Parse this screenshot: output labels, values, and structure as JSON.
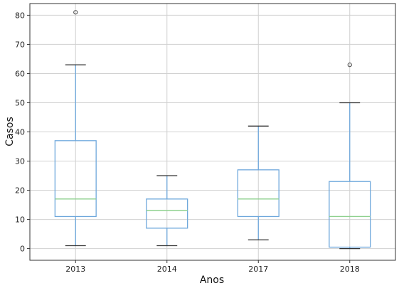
{
  "chart_data": {
    "type": "boxplot",
    "title": "",
    "xlabel": "Anos",
    "ylabel": "Casos",
    "categories": [
      "2013",
      "2014",
      "2017",
      "2018"
    ],
    "ylim": [
      -4,
      84
    ],
    "yticks": [
      0,
      10,
      20,
      30,
      40,
      50,
      60,
      70,
      80
    ],
    "grid": true,
    "boxes": [
      {
        "category": "2013",
        "whisker_low": 1,
        "q1": 11,
        "median": 17,
        "q3": 37,
        "whisker_high": 63,
        "outliers": [
          81
        ]
      },
      {
        "category": "2014",
        "whisker_low": 1,
        "q1": 7,
        "median": 13,
        "q3": 17,
        "whisker_high": 25,
        "outliers": []
      },
      {
        "category": "2017",
        "whisker_low": 3,
        "q1": 11,
        "median": 17,
        "q3": 27,
        "whisker_high": 42,
        "outliers": []
      },
      {
        "category": "2018",
        "whisker_low": 0,
        "q1": 0.5,
        "median": 11,
        "q3": 23,
        "whisker_high": 50,
        "outliers": [
          63
        ]
      }
    ],
    "colors": {
      "box": "#6fa8dc",
      "median": "#8fd18f",
      "cap": "#333333",
      "grid": "#d0d0d0"
    }
  }
}
